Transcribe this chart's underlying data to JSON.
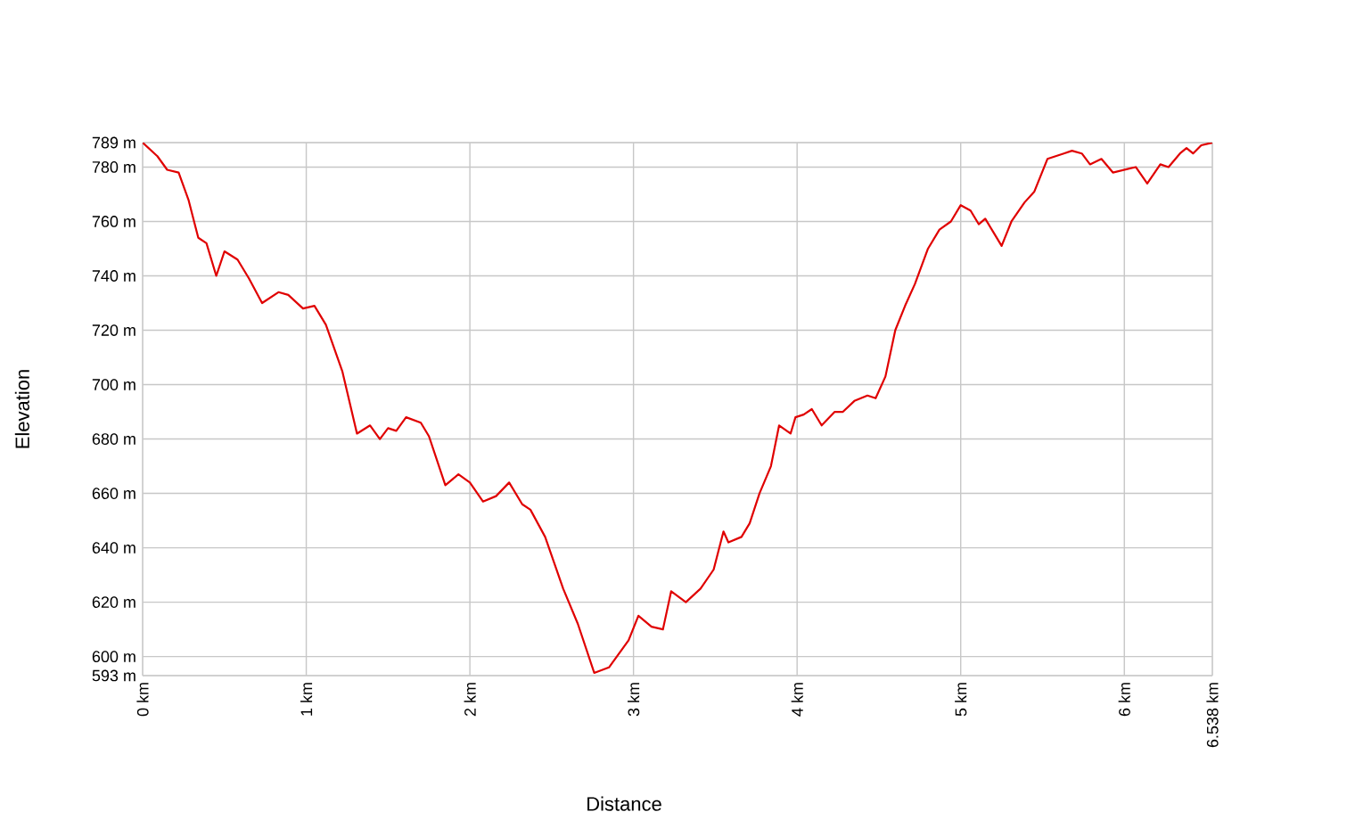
{
  "chart_data": {
    "type": "line",
    "xlabel": "Distance",
    "ylabel": "Elevation",
    "grid": true,
    "marker": "none",
    "line_style": "solid",
    "xlim": [
      0,
      6.538
    ],
    "ylim": [
      593,
      789
    ],
    "xticks": [
      {
        "value": 0,
        "label": "0 km"
      },
      {
        "value": 1,
        "label": "1 km"
      },
      {
        "value": 2,
        "label": "2 km"
      },
      {
        "value": 3,
        "label": "3 km"
      },
      {
        "value": 4,
        "label": "4 km"
      },
      {
        "value": 5,
        "label": "5 km"
      },
      {
        "value": 6,
        "label": "6 km"
      },
      {
        "value": 6.538,
        "label": "6.538 km"
      }
    ],
    "yticks": [
      {
        "value": 593,
        "label": "593 m"
      },
      {
        "value": 600,
        "label": "600 m"
      },
      {
        "value": 620,
        "label": "620 m"
      },
      {
        "value": 640,
        "label": "640 m"
      },
      {
        "value": 660,
        "label": "660 m"
      },
      {
        "value": 680,
        "label": "680 m"
      },
      {
        "value": 700,
        "label": "700 m"
      },
      {
        "value": 720,
        "label": "720 m"
      },
      {
        "value": 740,
        "label": "740 m"
      },
      {
        "value": 760,
        "label": "760 m"
      },
      {
        "value": 780,
        "label": "780 m"
      },
      {
        "value": 789,
        "label": "789 m"
      }
    ],
    "series": [
      {
        "color": "#e00000",
        "x": [
          0,
          0.09,
          0.15,
          0.22,
          0.28,
          0.34,
          0.39,
          0.45,
          0.5,
          0.58,
          0.65,
          0.73,
          0.83,
          0.89,
          0.98,
          1.05,
          1.12,
          1.22,
          1.31,
          1.39,
          1.45,
          1.5,
          1.55,
          1.61,
          1.7,
          1.75,
          1.85,
          1.93,
          2.0,
          2.08,
          2.16,
          2.24,
          2.32,
          2.37,
          2.46,
          2.57,
          2.66,
          2.76,
          2.85,
          2.97,
          3.03,
          3.11,
          3.18,
          3.23,
          3.32,
          3.41,
          3.49,
          3.55,
          3.58,
          3.66,
          3.71,
          3.77,
          3.84,
          3.89,
          3.96,
          3.99,
          4.04,
          4.09,
          4.15,
          4.23,
          4.28,
          4.35,
          4.43,
          4.48,
          4.54,
          4.6,
          4.66,
          4.72,
          4.8,
          4.87,
          4.94,
          5.0,
          5.06,
          5.11,
          5.15,
          5.2,
          5.25,
          5.31,
          5.39,
          5.45,
          5.53,
          5.63,
          5.68,
          5.74,
          5.79,
          5.86,
          5.93,
          6.07,
          6.14,
          6.22,
          6.27,
          6.34,
          6.38,
          6.42,
          6.47,
          6.538
        ],
        "values": [
          789,
          784,
          779,
          778,
          768,
          754,
          752,
          740,
          749,
          746,
          739,
          730,
          734,
          733,
          728,
          729,
          722,
          705,
          682,
          685,
          680,
          684,
          683,
          688,
          686,
          681,
          663,
          667,
          664,
          657,
          659,
          664,
          656,
          654,
          644,
          625,
          612,
          594,
          596,
          606,
          615,
          611,
          610,
          624,
          620,
          625,
          632,
          646,
          642,
          644,
          649,
          660,
          670,
          685,
          682,
          688,
          689,
          691,
          685,
          690,
          690,
          694,
          696,
          695,
          703,
          720,
          729,
          737,
          750,
          757,
          760,
          766,
          764,
          759,
          761,
          756,
          751,
          760,
          767,
          771,
          783,
          785,
          786,
          785,
          781,
          783,
          778,
          780,
          774,
          781,
          780,
          785,
          787,
          785,
          788,
          789
        ]
      }
    ]
  }
}
